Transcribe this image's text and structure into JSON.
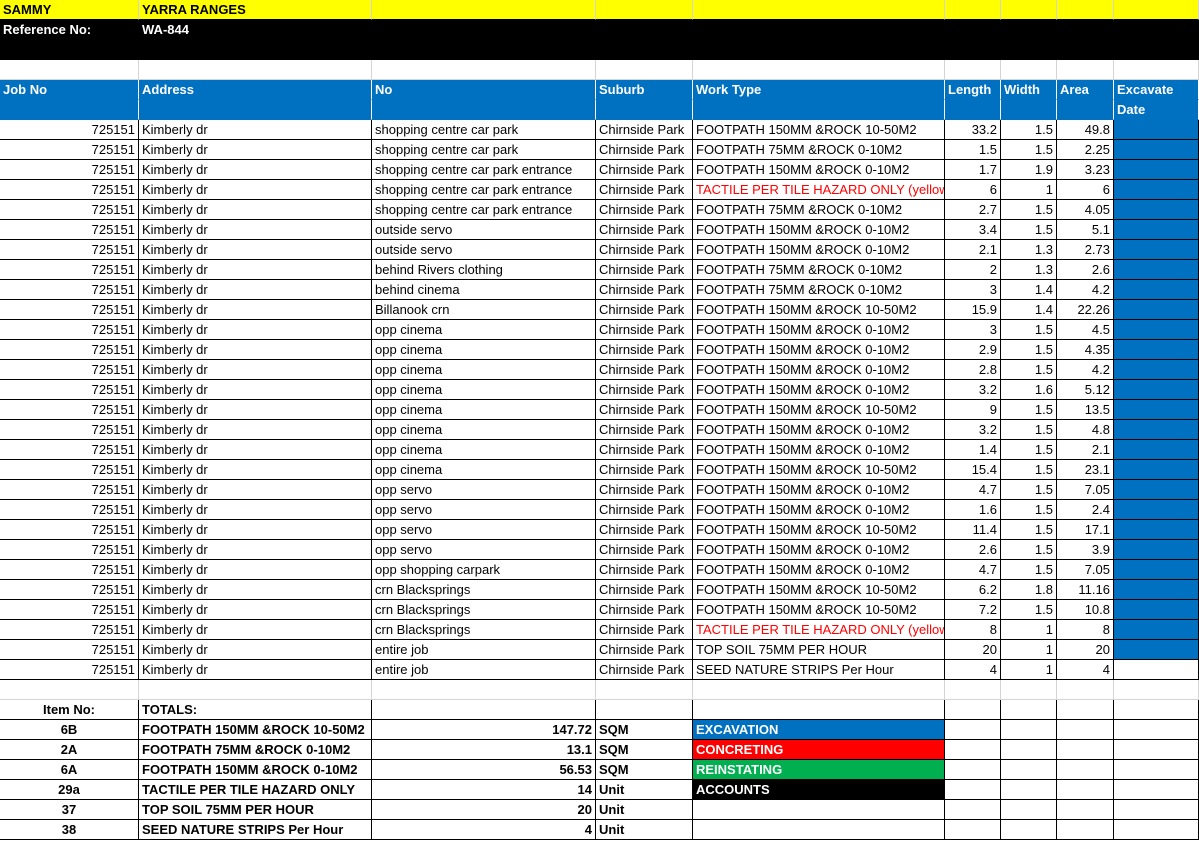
{
  "header": {
    "name": "SAMMY",
    "region": "YARRA RANGES",
    "ref_label": "Reference No:",
    "ref_value": "WA-844"
  },
  "columns": [
    "Job No",
    "Address",
    "No",
    "Suburb",
    "Work Type",
    "Length",
    "Width",
    "Area",
    "Excavate",
    "Date"
  ],
  "rows": [
    {
      "job": "725151",
      "address": "Kimberly dr",
      "no": "shopping centre car park",
      "suburb": "Chirnside Park",
      "work": "FOOTPATH 150MM &ROCK 10-50M2",
      "length": "33.2",
      "width": "1.5",
      "area": "49.8",
      "red": false,
      "blue": true
    },
    {
      "job": "725151",
      "address": "Kimberly dr",
      "no": "shopping centre car park",
      "suburb": "Chirnside Park",
      "work": "FOOTPATH 75MM &ROCK 0-10M2",
      "length": "1.5",
      "width": "1.5",
      "area": "2.25",
      "red": false,
      "blue": true
    },
    {
      "job": "725151",
      "address": "Kimberly dr",
      "no": "shopping centre car park entrance",
      "suburb": "Chirnside Park",
      "work": "FOOTPATH 150MM &ROCK 0-10M2",
      "length": "1.7",
      "width": "1.9",
      "area": "3.23",
      "red": false,
      "blue": true
    },
    {
      "job": "725151",
      "address": "Kimberly dr",
      "no": "shopping centre car park entrance",
      "suburb": "Chirnside Park",
      "work": "TACTILE PER TILE HAZARD ONLY (yellow )",
      "length": "6",
      "width": "1",
      "area": "6",
      "red": true,
      "blue": true
    },
    {
      "job": "725151",
      "address": "Kimberly dr",
      "no": "shopping centre car park entrance",
      "suburb": "Chirnside Park",
      "work": "FOOTPATH 75MM &ROCK 0-10M2",
      "length": "2.7",
      "width": "1.5",
      "area": "4.05",
      "red": false,
      "blue": true
    },
    {
      "job": "725151",
      "address": "Kimberly dr",
      "no": "outside servo",
      "suburb": "Chirnside Park",
      "work": "FOOTPATH 150MM &ROCK 0-10M2",
      "length": "3.4",
      "width": "1.5",
      "area": "5.1",
      "red": false,
      "blue": true
    },
    {
      "job": "725151",
      "address": "Kimberly dr",
      "no": "outside servo",
      "suburb": "Chirnside Park",
      "work": "FOOTPATH 150MM &ROCK 0-10M2",
      "length": "2.1",
      "width": "1.3",
      "area": "2.73",
      "red": false,
      "blue": true
    },
    {
      "job": "725151",
      "address": "Kimberly dr",
      "no": "behind Rivers clothing",
      "suburb": "Chirnside Park",
      "work": "FOOTPATH 75MM &ROCK 0-10M2",
      "length": "2",
      "width": "1.3",
      "area": "2.6",
      "red": false,
      "blue": true
    },
    {
      "job": "725151",
      "address": "Kimberly dr",
      "no": "behind cinema",
      "suburb": "Chirnside Park",
      "work": "FOOTPATH 75MM &ROCK 0-10M2",
      "length": "3",
      "width": "1.4",
      "area": "4.2",
      "red": false,
      "blue": true
    },
    {
      "job": "725151",
      "address": "Kimberly dr",
      "no": "Billanook crn",
      "suburb": "Chirnside Park",
      "work": "FOOTPATH 150MM &ROCK 10-50M2",
      "length": "15.9",
      "width": "1.4",
      "area": "22.26",
      "red": false,
      "blue": true
    },
    {
      "job": "725151",
      "address": "Kimberly dr",
      "no": "opp cinema",
      "suburb": "Chirnside Park",
      "work": "FOOTPATH 150MM &ROCK 0-10M2",
      "length": "3",
      "width": "1.5",
      "area": "4.5",
      "red": false,
      "blue": true
    },
    {
      "job": "725151",
      "address": "Kimberly dr",
      "no": "opp cinema",
      "suburb": "Chirnside Park",
      "work": "FOOTPATH 150MM &ROCK 0-10M2",
      "length": "2.9",
      "width": "1.5",
      "area": "4.35",
      "red": false,
      "blue": true
    },
    {
      "job": "725151",
      "address": "Kimberly dr",
      "no": "opp cinema",
      "suburb": "Chirnside Park",
      "work": "FOOTPATH 150MM &ROCK 0-10M2",
      "length": "2.8",
      "width": "1.5",
      "area": "4.2",
      "red": false,
      "blue": true
    },
    {
      "job": "725151",
      "address": "Kimberly dr",
      "no": "opp cinema",
      "suburb": "Chirnside Park",
      "work": "FOOTPATH 150MM &ROCK 0-10M2",
      "length": "3.2",
      "width": "1.6",
      "area": "5.12",
      "red": false,
      "blue": true
    },
    {
      "job": "725151",
      "address": "Kimberly dr",
      "no": "opp cinema",
      "suburb": "Chirnside Park",
      "work": "FOOTPATH 150MM &ROCK 10-50M2",
      "length": "9",
      "width": "1.5",
      "area": "13.5",
      "red": false,
      "blue": true
    },
    {
      "job": "725151",
      "address": "Kimberly dr",
      "no": "opp cinema",
      "suburb": "Chirnside Park",
      "work": "FOOTPATH 150MM &ROCK 0-10M2",
      "length": "3.2",
      "width": "1.5",
      "area": "4.8",
      "red": false,
      "blue": true
    },
    {
      "job": "725151",
      "address": "Kimberly dr",
      "no": "opp cinema",
      "suburb": "Chirnside Park",
      "work": "FOOTPATH 150MM &ROCK 0-10M2",
      "length": "1.4",
      "width": "1.5",
      "area": "2.1",
      "red": false,
      "blue": true
    },
    {
      "job": "725151",
      "address": "Kimberly dr",
      "no": "opp cinema",
      "suburb": "Chirnside Park",
      "work": "FOOTPATH 150MM &ROCK 10-50M2",
      "length": "15.4",
      "width": "1.5",
      "area": "23.1",
      "red": false,
      "blue": true
    },
    {
      "job": "725151",
      "address": "Kimberly dr",
      "no": "opp servo",
      "suburb": "Chirnside Park",
      "work": "FOOTPATH 150MM &ROCK 0-10M2",
      "length": "4.7",
      "width": "1.5",
      "area": "7.05",
      "red": false,
      "blue": true
    },
    {
      "job": "725151",
      "address": "Kimberly dr",
      "no": "opp servo",
      "suburb": "Chirnside Park",
      "work": "FOOTPATH 150MM &ROCK 0-10M2",
      "length": "1.6",
      "width": "1.5",
      "area": "2.4",
      "red": false,
      "blue": true
    },
    {
      "job": "725151",
      "address": "Kimberly dr",
      "no": "opp servo",
      "suburb": "Chirnside Park",
      "work": "FOOTPATH 150MM &ROCK 10-50M2",
      "length": "11.4",
      "width": "1.5",
      "area": "17.1",
      "red": false,
      "blue": true
    },
    {
      "job": "725151",
      "address": "Kimberly dr",
      "no": "opp servo",
      "suburb": "Chirnside Park",
      "work": "FOOTPATH 150MM &ROCK 0-10M2",
      "length": "2.6",
      "width": "1.5",
      "area": "3.9",
      "red": false,
      "blue": true
    },
    {
      "job": "725151",
      "address": "Kimberly dr",
      "no": "opp shopping carpark",
      "suburb": "Chirnside Park",
      "work": "FOOTPATH 150MM &ROCK 0-10M2",
      "length": "4.7",
      "width": "1.5",
      "area": "7.05",
      "red": false,
      "blue": true
    },
    {
      "job": "725151",
      "address": "Kimberly dr",
      "no": "crn Blacksprings",
      "suburb": "Chirnside Park",
      "work": "FOOTPATH 150MM &ROCK 10-50M2",
      "length": "6.2",
      "width": "1.8",
      "area": "11.16",
      "red": false,
      "blue": true
    },
    {
      "job": "725151",
      "address": "Kimberly dr",
      "no": "crn Blacksprings",
      "suburb": "Chirnside Park",
      "work": "FOOTPATH 150MM &ROCK 10-50M2",
      "length": "7.2",
      "width": "1.5",
      "area": "10.8",
      "red": false,
      "blue": true
    },
    {
      "job": "725151",
      "address": "Kimberly dr",
      "no": "crn Blacksprings",
      "suburb": "Chirnside Park",
      "work": "TACTILE PER TILE HAZARD ONLY (yellow )",
      "length": "8",
      "width": "1",
      "area": "8",
      "red": true,
      "blue": true
    },
    {
      "job": "725151",
      "address": "Kimberly dr",
      "no": "entire job",
      "suburb": "Chirnside Park",
      "work": "TOP SOIL 75MM PER HOUR",
      "length": "20",
      "width": "1",
      "area": "20",
      "red": false,
      "blue": true
    },
    {
      "job": "725151",
      "address": "Kimberly dr",
      "no": "entire job",
      "suburb": "Chirnside Park",
      "work": "SEED NATURE STRIPS Per Hour",
      "length": "4",
      "width": "1",
      "area": "4",
      "red": false,
      "blue": false
    }
  ],
  "totals_header": {
    "item_label": "Item No:",
    "totals_label": "TOTALS:"
  },
  "totals": [
    {
      "item": "6B",
      "desc": "FOOTPATH 150MM &ROCK 10-50M2",
      "qty": "147.72",
      "unit": "SQM"
    },
    {
      "item": "2A",
      "desc": "FOOTPATH 75MM &ROCK 0-10M2",
      "qty": "13.1",
      "unit": "SQM"
    },
    {
      "item": "6A",
      "desc": "FOOTPATH 150MM &ROCK 0-10M2",
      "qty": "56.53",
      "unit": "SQM"
    },
    {
      "item": "29a",
      "desc": "TACTILE PER TILE HAZARD ONLY",
      "qty": "14",
      "unit": "Unit"
    },
    {
      "item": "37",
      "desc": "TOP SOIL 75MM PER HOUR",
      "qty": "20",
      "unit": "Unit"
    },
    {
      "item": "38",
      "desc": "SEED NATURE STRIPS Per Hour",
      "qty": "4",
      "unit": "Unit"
    }
  ],
  "legend": [
    {
      "label": "EXCAVATION",
      "color": "#0070c0"
    },
    {
      "label": "CONCRETING",
      "color": "#ff0000"
    },
    {
      "label": "REINSTATING",
      "color": "#00b050"
    },
    {
      "label": "ACCOUNTS",
      "color": "#000000"
    }
  ]
}
